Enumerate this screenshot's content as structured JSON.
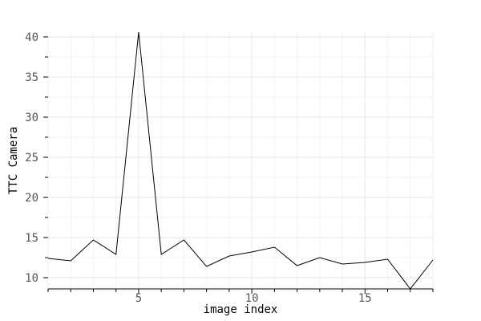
{
  "chart_data": {
    "type": "line",
    "title": "",
    "xlabel": "image index",
    "ylabel": "TTC Camera",
    "xlim": [
      1,
      18
    ],
    "ylim": [
      8.6,
      40.6
    ],
    "xticks": [
      5,
      10,
      15
    ],
    "yticks": [
      10,
      15,
      20,
      25,
      30,
      35,
      40
    ],
    "grid": true,
    "series": [
      {
        "x": [
          1,
          2,
          3,
          4,
          5,
          6,
          7,
          8,
          9,
          10,
          11,
          12,
          13,
          14,
          15,
          16,
          17,
          18
        ],
        "values": [
          12.4,
          12.1,
          14.7,
          12.9,
          40.6,
          12.9,
          14.7,
          11.4,
          12.7,
          13.2,
          13.8,
          11.5,
          12.5,
          11.7,
          11.9,
          12.3,
          8.6,
          12.2
        ]
      }
    ],
    "colors": {
      "line": "#000000",
      "grid": "#e6e6e6",
      "tick_text": "#555555"
    }
  }
}
